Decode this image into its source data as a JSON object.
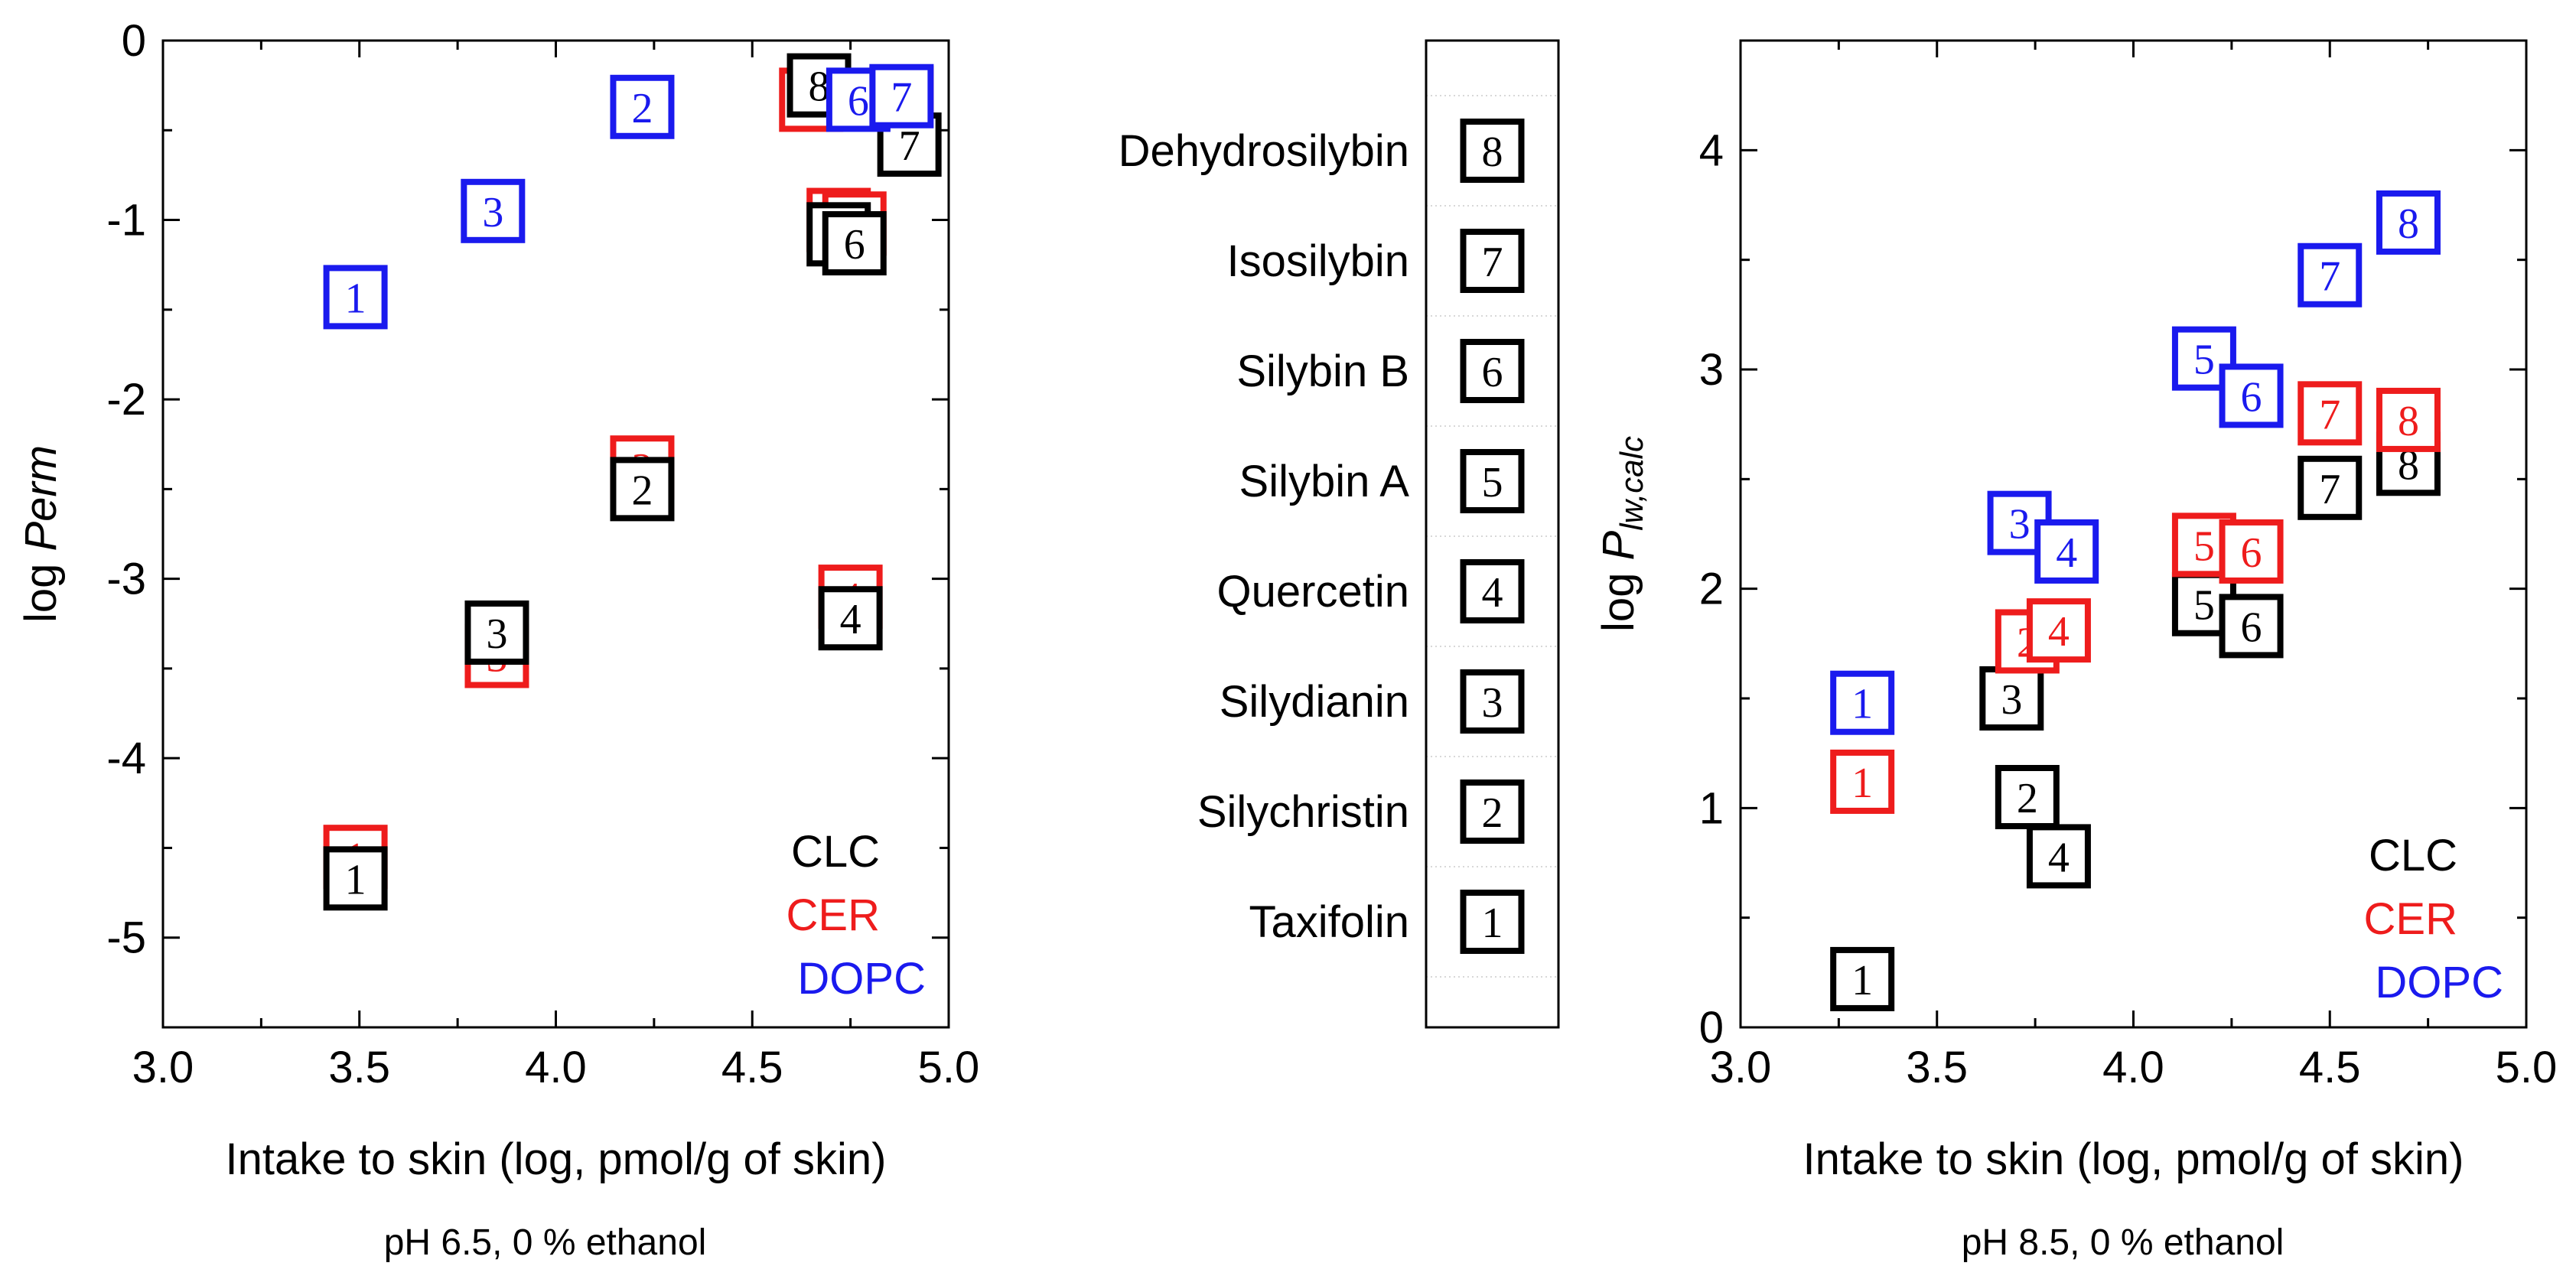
{
  "colors": {
    "CLC": "#000000",
    "CER": "#ee1c1c",
    "DOPC": "#1a1aee"
  },
  "chart_data": [
    {
      "type": "scatter",
      "title": "",
      "xlabel": "Intake to skin (log, pmol/g of skin)",
      "ylabel_prefix": "log ",
      "ylabel_italic": "Perm",
      "caption": "pH 6.5, 0 % ethanol",
      "xlim": [
        3.0,
        5.0
      ],
      "ylim": [
        -5.5,
        0
      ],
      "xticks": [
        3.0,
        3.5,
        4.0,
        4.5,
        5.0
      ],
      "xtick_labels": [
        "3.0",
        "3.5",
        "4.0",
        "4.5",
        "5.0"
      ],
      "yticks": [
        0,
        -1,
        -2,
        -3,
        -4,
        -5
      ],
      "ytick_labels": [
        "0",
        "-1",
        "-2",
        "-3",
        "-4",
        "-5"
      ],
      "legend": [
        "CLC",
        "CER",
        "DOPC"
      ],
      "legend_position": "bottom-right",
      "series": [
        {
          "name": "CER",
          "points": [
            {
              "label": "1",
              "x": 3.49,
              "y": -4.55
            },
            {
              "label": "2",
              "x": 4.22,
              "y": -2.38
            },
            {
              "label": "3",
              "x": 3.85,
              "y": -3.43
            },
            {
              "label": "4",
              "x": 4.75,
              "y": -3.1
            },
            {
              "label": "5",
              "x": 4.72,
              "y": -1.0
            },
            {
              "label": "6",
              "x": 4.76,
              "y": -1.02
            },
            {
              "label": "7",
              "x": 4.88,
              "y": -0.32
            },
            {
              "label": "8",
              "x": 4.65,
              "y": -0.33
            }
          ]
        },
        {
          "name": "CLC",
          "points": [
            {
              "label": "1",
              "x": 3.49,
              "y": -4.67
            },
            {
              "label": "2",
              "x": 4.22,
              "y": -2.5
            },
            {
              "label": "3",
              "x": 3.85,
              "y": -3.3
            },
            {
              "label": "4",
              "x": 4.75,
              "y": -3.22
            },
            {
              "label": "5",
              "x": 4.72,
              "y": -1.08
            },
            {
              "label": "6",
              "x": 4.76,
              "y": -1.13
            },
            {
              "label": "7",
              "x": 4.9,
              "y": -0.58
            },
            {
              "label": "8",
              "x": 4.67,
              "y": -0.25
            }
          ]
        },
        {
          "name": "DOPC",
          "points": [
            {
              "label": "1",
              "x": 3.49,
              "y": -1.43
            },
            {
              "label": "2",
              "x": 4.22,
              "y": -0.37
            },
            {
              "label": "3",
              "x": 3.84,
              "y": -0.95
            },
            {
              "label": "6",
              "x": 4.77,
              "y": -0.33
            },
            {
              "label": "7",
              "x": 4.88,
              "y": -0.31
            }
          ]
        }
      ]
    },
    {
      "type": "table",
      "title": "",
      "compounds": [
        {
          "name": "Dehydrosilybin",
          "number": "8"
        },
        {
          "name": "Isosilybin",
          "number": "7"
        },
        {
          "name": "Silybin B",
          "number": "6"
        },
        {
          "name": "Silybin A",
          "number": "5"
        },
        {
          "name": "Quercetin",
          "number": "4"
        },
        {
          "name": "Silydianin",
          "number": "3"
        },
        {
          "name": "Silychristin",
          "number": "2"
        },
        {
          "name": "Taxifolin",
          "number": "1"
        }
      ]
    },
    {
      "type": "scatter",
      "title": "",
      "xlabel": "Intake to skin (log, pmol/g of skin)",
      "ylabel_prefix": "log ",
      "ylabel_italic": "P",
      "ylabel_sub": "lw,calc",
      "caption": "pH 8.5, 0 % ethanol",
      "xlim": [
        3.0,
        5.0
      ],
      "ylim": [
        0,
        4.5
      ],
      "xticks": [
        3.0,
        3.5,
        4.0,
        4.5,
        5.0
      ],
      "xtick_labels": [
        "3.0",
        "3.5",
        "4.0",
        "4.5",
        "5.0"
      ],
      "yticks": [
        0,
        1,
        2,
        3,
        4
      ],
      "ytick_labels": [
        "0",
        "1",
        "2",
        "3",
        "4"
      ],
      "legend": [
        "CLC",
        "CER",
        "DOPC"
      ],
      "legend_position": "bottom-right",
      "series": [
        {
          "name": "CLC",
          "points": [
            {
              "label": "1",
              "x": 3.31,
              "y": 0.22
            },
            {
              "label": "2",
              "x": 3.73,
              "y": 1.05
            },
            {
              "label": "3",
              "x": 3.69,
              "y": 1.5
            },
            {
              "label": "4",
              "x": 3.81,
              "y": 0.78
            },
            {
              "label": "5",
              "x": 4.18,
              "y": 1.93
            },
            {
              "label": "6",
              "x": 4.3,
              "y": 1.83
            },
            {
              "label": "7",
              "x": 4.5,
              "y": 2.46
            },
            {
              "label": "8",
              "x": 4.7,
              "y": 2.57
            }
          ]
        },
        {
          "name": "CER",
          "points": [
            {
              "label": "1",
              "x": 3.31,
              "y": 1.12
            },
            {
              "label": "2",
              "x": 3.73,
              "y": 1.76
            },
            {
              "label": "4",
              "x": 3.81,
              "y": 1.81
            },
            {
              "label": "5",
              "x": 4.18,
              "y": 2.2
            },
            {
              "label": "6",
              "x": 4.3,
              "y": 2.17
            },
            {
              "label": "7",
              "x": 4.5,
              "y": 2.8
            },
            {
              "label": "8",
              "x": 4.7,
              "y": 2.77
            }
          ]
        },
        {
          "name": "DOPC",
          "points": [
            {
              "label": "1",
              "x": 3.31,
              "y": 1.48
            },
            {
              "label": "3",
              "x": 3.71,
              "y": 2.3
            },
            {
              "label": "4",
              "x": 3.83,
              "y": 2.17
            },
            {
              "label": "5",
              "x": 4.18,
              "y": 3.05
            },
            {
              "label": "6",
              "x": 4.3,
              "y": 2.88
            },
            {
              "label": "7",
              "x": 4.5,
              "y": 3.43
            },
            {
              "label": "8",
              "x": 4.7,
              "y": 3.67
            }
          ]
        }
      ]
    }
  ]
}
